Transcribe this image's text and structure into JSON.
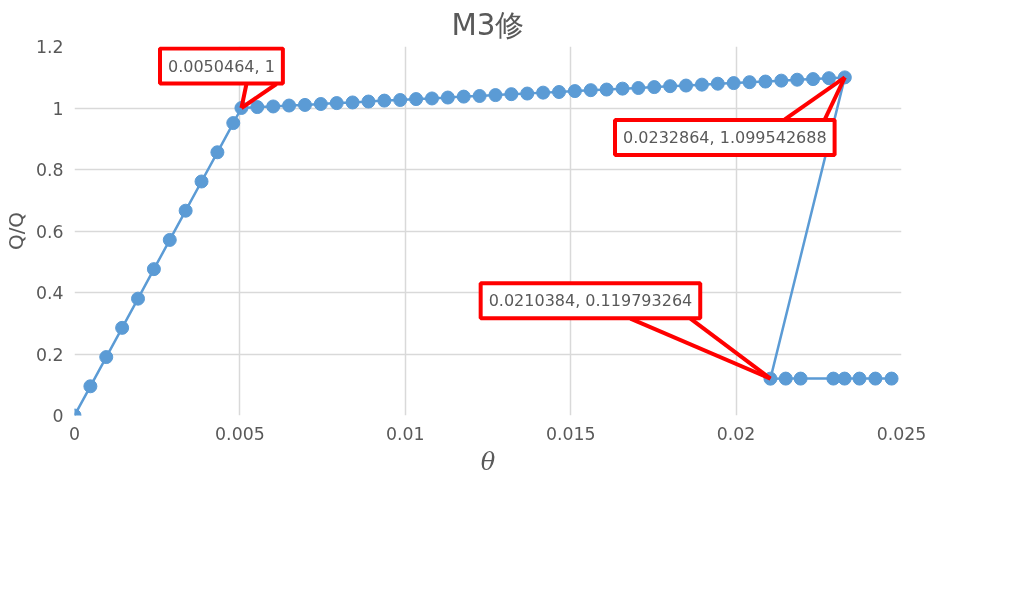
{
  "chart_data": {
    "type": "line",
    "title": "M3修",
    "xlabel": "θ",
    "ylabel": "Q/Q",
    "xlim": [
      0,
      0.025
    ],
    "ylim": [
      0,
      1.2
    ],
    "xticks": [
      0,
      0.005,
      0.01,
      0.015,
      0.02,
      0.025
    ],
    "yticks": [
      0,
      0.2,
      0.4,
      0.6,
      0.8,
      1,
      1.2
    ],
    "grid": true,
    "marker": "circle",
    "line_style": "solid",
    "series": [
      {
        "color": "#5b9bd5",
        "x": [
          0,
          0.00048,
          0.00096,
          0.00144,
          0.00192,
          0.0024,
          0.00288,
          0.00336,
          0.00384,
          0.00432,
          0.0048,
          0.0050464,
          0.0055264,
          0.0060064,
          0.0064864,
          0.0069664,
          0.0074464,
          0.0079264,
          0.0084064,
          0.0088864,
          0.0093664,
          0.0098464,
          0.0103264,
          0.0108064,
          0.0112864,
          0.0117664,
          0.0122464,
          0.0127264,
          0.0132064,
          0.0136864,
          0.0141664,
          0.0146464,
          0.0151264,
          0.0156064,
          0.0160864,
          0.0165664,
          0.0170464,
          0.0175264,
          0.0180064,
          0.0184864,
          0.0189664,
          0.0194464,
          0.0199264,
          0.0204064,
          0.0208864,
          0.0213664,
          0.0218464,
          0.0223264,
          0.0228064,
          0.0232864,
          0.0210384,
          0.0215,
          0.02195,
          0.02294,
          0.02328,
          0.02373,
          0.02421,
          0.0247
        ],
        "values": [
          0,
          0.095,
          0.19,
          0.285,
          0.38,
          0.476,
          0.571,
          0.666,
          0.761,
          0.856,
          0.951,
          1,
          1.003,
          1.005,
          1.008,
          1.01,
          1.013,
          1.016,
          1.018,
          1.021,
          1.024,
          1.026,
          1.029,
          1.031,
          1.034,
          1.037,
          1.039,
          1.042,
          1.045,
          1.047,
          1.05,
          1.052,
          1.055,
          1.058,
          1.06,
          1.063,
          1.065,
          1.068,
          1.071,
          1.073,
          1.076,
          1.079,
          1.081,
          1.084,
          1.086,
          1.089,
          1.092,
          1.094,
          1.097,
          1.099542688,
          0.119793264,
          0.12,
          0.12,
          0.12,
          0.12,
          0.12,
          0.12,
          0.12
        ]
      }
    ],
    "annotations": [
      {
        "text": "0.0050464, 1",
        "x": 0.0050464,
        "y": 1
      },
      {
        "text": "0.0232864, 1.099542688",
        "x": 0.0232864,
        "y": 1.099542688
      },
      {
        "text": "0.0210384, 0.119793264",
        "x": 0.0210384,
        "y": 0.119793264
      }
    ]
  }
}
